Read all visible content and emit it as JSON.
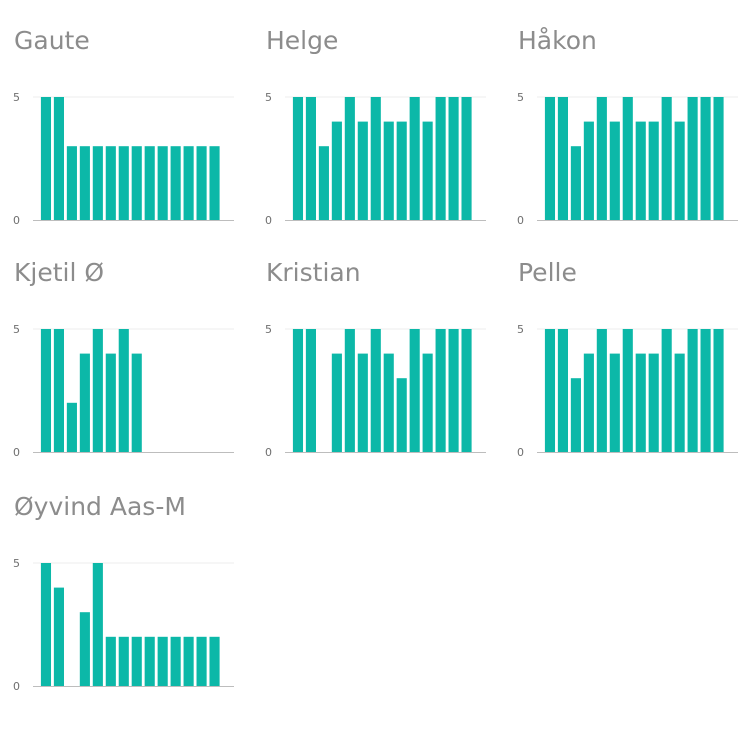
{
  "chart_data": [
    {
      "type": "bar",
      "title": "Gaute",
      "x": [
        1,
        2,
        3,
        4,
        5,
        6,
        7,
        8,
        9,
        10,
        11,
        12,
        13,
        14
      ],
      "values": [
        5,
        5,
        3,
        3,
        3,
        3,
        3,
        3,
        3,
        3,
        3,
        3,
        3,
        3
      ],
      "ylim": [
        0,
        5
      ],
      "xlim": [
        0,
        15.5
      ],
      "yticks": [
        0,
        5
      ],
      "xticks": [
        0,
        10
      ],
      "grid": true
    },
    {
      "type": "bar",
      "title": "Helge",
      "x": [
        1,
        2,
        3,
        4,
        5,
        6,
        7,
        8,
        9,
        10,
        11,
        12,
        13,
        14
      ],
      "values": [
        5,
        5,
        3,
        4,
        5,
        4,
        5,
        4,
        4,
        5,
        4,
        5,
        5,
        5
      ],
      "ylim": [
        0,
        5
      ],
      "xlim": [
        0,
        15.5
      ],
      "yticks": [
        0,
        5
      ],
      "xticks": [
        0,
        10
      ],
      "grid": true
    },
    {
      "type": "bar",
      "title": "Håkon",
      "x": [
        1,
        2,
        3,
        4,
        5,
        6,
        7,
        8,
        9,
        10,
        11,
        12,
        13,
        14
      ],
      "values": [
        5,
        5,
        3,
        4,
        5,
        4,
        5,
        4,
        4,
        5,
        4,
        5,
        5,
        5
      ],
      "ylim": [
        0,
        5
      ],
      "xlim": [
        0,
        15.5
      ],
      "yticks": [
        0,
        5
      ],
      "xticks": [
        0,
        10
      ],
      "grid": true
    },
    {
      "type": "bar",
      "title": "Kjetil Ø",
      "x": [
        1,
        2,
        3,
        4,
        5,
        6,
        7,
        8
      ],
      "values": [
        5,
        5,
        2,
        4,
        5,
        4,
        5,
        4
      ],
      "ylim": [
        0,
        5
      ],
      "xlim": [
        0,
        15.5
      ],
      "yticks": [
        0,
        5
      ],
      "xticks": [
        0,
        10
      ],
      "grid": true
    },
    {
      "type": "bar",
      "title": "Kristian",
      "x": [
        1,
        2,
        4,
        5,
        6,
        7,
        8,
        9,
        10,
        11,
        12,
        13,
        14
      ],
      "values": [
        5,
        5,
        4,
        5,
        4,
        5,
        4,
        3,
        5,
        4,
        5,
        5,
        5
      ],
      "ylim": [
        0,
        5
      ],
      "xlim": [
        0,
        15.5
      ],
      "yticks": [
        0,
        5
      ],
      "xticks": [
        0,
        10
      ],
      "grid": true
    },
    {
      "type": "bar",
      "title": "Pelle",
      "x": [
        1,
        2,
        3,
        4,
        5,
        6,
        7,
        8,
        9,
        10,
        11,
        12,
        13,
        14
      ],
      "values": [
        5,
        5,
        3,
        4,
        5,
        4,
        5,
        4,
        4,
        5,
        4,
        5,
        5,
        5
      ],
      "ylim": [
        0,
        5
      ],
      "xlim": [
        0,
        15.5
      ],
      "yticks": [
        0,
        5
      ],
      "xticks": [
        0,
        10
      ],
      "grid": true
    },
    {
      "type": "bar",
      "title": "Øyvind Aas-M",
      "x": [
        1,
        2,
        4,
        5,
        6,
        7,
        8,
        9,
        10,
        11,
        12,
        13,
        14
      ],
      "values": [
        5,
        4,
        3,
        5,
        2,
        2,
        2,
        2,
        2,
        2,
        2,
        2,
        2
      ],
      "ylim": [
        0,
        5
      ],
      "xlim": [
        0,
        15.5
      ],
      "yticks": [
        0,
        5
      ],
      "xticks": [
        0,
        10
      ],
      "grid": true
    }
  ],
  "colors": {
    "bar": "#0cb8a8",
    "title": "#8c8c8c",
    "axis": "#bdbdbd",
    "grid": "#eeeeee",
    "tick": "#6f6f6f"
  }
}
